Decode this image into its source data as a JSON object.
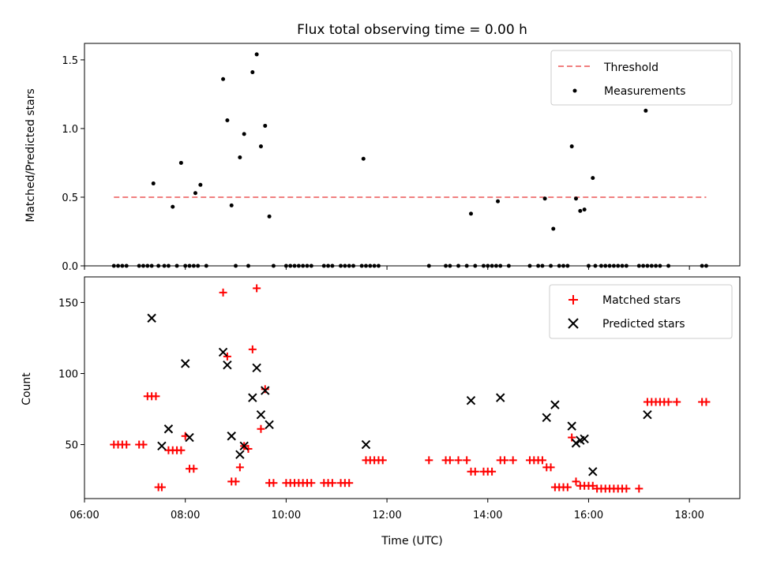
{
  "chart_data": [
    {
      "type": "scatter",
      "title": "Flux total observing time = 0.00 h",
      "ylabel": "Matched/Predicted stars",
      "xlim": [
        "06:00",
        "19:00"
      ],
      "ylim": [
        0,
        1.62
      ],
      "yticks": [
        "0.0",
        "0.5",
        "1.0",
        "1.5"
      ],
      "legend_position": "top-right",
      "threshold": {
        "name": "Threshold",
        "value": 0.5,
        "color": "#f08080",
        "style": "dashed",
        "x_range": [
          "06:35",
          "18:20"
        ]
      },
      "series": [
        {
          "name": "Measurements",
          "color": "#000000",
          "marker": "dot",
          "points": [
            [
              "06:35",
              0
            ],
            [
              "06:40",
              0
            ],
            [
              "06:45",
              0
            ],
            [
              "06:50",
              0
            ],
            [
              "07:05",
              0
            ],
            [
              "07:10",
              0
            ],
            [
              "07:15",
              0
            ],
            [
              "07:20",
              0
            ],
            [
              "07:22",
              0.6
            ],
            [
              "07:28",
              0
            ],
            [
              "07:35",
              0
            ],
            [
              "07:40",
              0
            ],
            [
              "07:45",
              0.43
            ],
            [
              "07:50",
              0
            ],
            [
              "07:55",
              0.75
            ],
            [
              "08:00",
              0
            ],
            [
              "08:05",
              0
            ],
            [
              "08:10",
              0
            ],
            [
              "08:12",
              0.53
            ],
            [
              "08:15",
              0
            ],
            [
              "08:18",
              0.59
            ],
            [
              "08:25",
              0
            ],
            [
              "08:45",
              1.36
            ],
            [
              "08:50",
              1.06
            ],
            [
              "08:55",
              0.44
            ],
            [
              "09:00",
              0
            ],
            [
              "09:05",
              0.79
            ],
            [
              "09:10",
              0.96
            ],
            [
              "09:15",
              0
            ],
            [
              "09:20",
              1.41
            ],
            [
              "09:25",
              1.54
            ],
            [
              "09:30",
              0.87
            ],
            [
              "09:35",
              1.02
            ],
            [
              "09:40",
              0.36
            ],
            [
              "09:45",
              0
            ],
            [
              "10:00",
              0
            ],
            [
              "10:05",
              0
            ],
            [
              "10:10",
              0
            ],
            [
              "10:15",
              0
            ],
            [
              "10:20",
              0
            ],
            [
              "10:25",
              0
            ],
            [
              "10:30",
              0
            ],
            [
              "10:45",
              0
            ],
            [
              "10:50",
              0
            ],
            [
              "10:55",
              0
            ],
            [
              "11:05",
              0
            ],
            [
              "11:10",
              0
            ],
            [
              "11:15",
              0
            ],
            [
              "11:20",
              0
            ],
            [
              "11:30",
              0
            ],
            [
              "11:32",
              0.78
            ],
            [
              "11:35",
              0
            ],
            [
              "11:40",
              0
            ],
            [
              "11:45",
              0
            ],
            [
              "11:50",
              0
            ],
            [
              "12:50",
              0
            ],
            [
              "13:10",
              0
            ],
            [
              "13:15",
              0
            ],
            [
              "13:25",
              0
            ],
            [
              "13:35",
              0
            ],
            [
              "13:40",
              0.38
            ],
            [
              "13:45",
              0
            ],
            [
              "13:55",
              0
            ],
            [
              "14:00",
              0
            ],
            [
              "14:05",
              0
            ],
            [
              "14:10",
              0
            ],
            [
              "14:12",
              0.47
            ],
            [
              "14:15",
              0
            ],
            [
              "14:25",
              0
            ],
            [
              "14:50",
              0
            ],
            [
              "15:00",
              0
            ],
            [
              "15:05",
              0
            ],
            [
              "15:08",
              0.49
            ],
            [
              "15:15",
              0
            ],
            [
              "15:18",
              0.27
            ],
            [
              "15:25",
              0
            ],
            [
              "15:30",
              0
            ],
            [
              "15:35",
              0
            ],
            [
              "15:40",
              0.87
            ],
            [
              "15:45",
              0.49
            ],
            [
              "15:50",
              0.4
            ],
            [
              "15:55",
              0.41
            ],
            [
              "16:00",
              0
            ],
            [
              "16:05",
              0.64
            ],
            [
              "16:08",
              0
            ],
            [
              "16:15",
              0
            ],
            [
              "16:20",
              0
            ],
            [
              "16:25",
              0
            ],
            [
              "16:30",
              0
            ],
            [
              "16:35",
              0
            ],
            [
              "16:40",
              0
            ],
            [
              "16:45",
              0
            ],
            [
              "17:00",
              0
            ],
            [
              "17:05",
              0
            ],
            [
              "17:08",
              1.13
            ],
            [
              "17:10",
              0
            ],
            [
              "17:15",
              0
            ],
            [
              "17:20",
              0
            ],
            [
              "17:25",
              0
            ],
            [
              "17:35",
              0
            ],
            [
              "18:15",
              0
            ],
            [
              "18:20",
              0
            ]
          ]
        }
      ]
    },
    {
      "type": "scatter",
      "xlabel": "Time (UTC)",
      "ylabel": "Count",
      "xlim": [
        "06:00",
        "19:00"
      ],
      "ylim": [
        12,
        168
      ],
      "xticks": [
        "06:00",
        "08:00",
        "10:00",
        "12:00",
        "14:00",
        "16:00",
        "18:00"
      ],
      "yticks": [
        "50",
        "100",
        "150"
      ],
      "legend_position": "top-right",
      "series": [
        {
          "name": "Matched stars",
          "color": "#ff0000",
          "marker": "plus",
          "points": [
            [
              "06:35",
              50
            ],
            [
              "06:40",
              50
            ],
            [
              "06:45",
              50
            ],
            [
              "06:50",
              50
            ],
            [
              "07:05",
              50
            ],
            [
              "07:10",
              50
            ],
            [
              "07:15",
              84
            ],
            [
              "07:20",
              84
            ],
            [
              "07:25",
              84
            ],
            [
              "07:28",
              20
            ],
            [
              "07:32",
              20
            ],
            [
              "07:40",
              46
            ],
            [
              "07:45",
              46
            ],
            [
              "07:50",
              46
            ],
            [
              "07:55",
              46
            ],
            [
              "08:00",
              56
            ],
            [
              "08:05",
              33
            ],
            [
              "08:10",
              33
            ],
            [
              "08:45",
              157
            ],
            [
              "08:50",
              112
            ],
            [
              "08:55",
              24
            ],
            [
              "09:00",
              24
            ],
            [
              "09:05",
              34
            ],
            [
              "09:10",
              49
            ],
            [
              "09:15",
              47
            ],
            [
              "09:20",
              117
            ],
            [
              "09:25",
              160
            ],
            [
              "09:30",
              61
            ],
            [
              "09:35",
              89
            ],
            [
              "09:40",
              23
            ],
            [
              "09:45",
              23
            ],
            [
              "10:00",
              23
            ],
            [
              "10:05",
              23
            ],
            [
              "10:10",
              23
            ],
            [
              "10:15",
              23
            ],
            [
              "10:20",
              23
            ],
            [
              "10:25",
              23
            ],
            [
              "10:30",
              23
            ],
            [
              "10:45",
              23
            ],
            [
              "10:50",
              23
            ],
            [
              "10:55",
              23
            ],
            [
              "11:05",
              23
            ],
            [
              "11:10",
              23
            ],
            [
              "11:15",
              23
            ],
            [
              "11:35",
              39
            ],
            [
              "11:40",
              39
            ],
            [
              "11:45",
              39
            ],
            [
              "11:50",
              39
            ],
            [
              "11:55",
              39
            ],
            [
              "12:50",
              39
            ],
            [
              "13:10",
              39
            ],
            [
              "13:15",
              39
            ],
            [
              "13:25",
              39
            ],
            [
              "13:35",
              39
            ],
            [
              "13:40",
              31
            ],
            [
              "13:45",
              31
            ],
            [
              "13:55",
              31
            ],
            [
              "14:00",
              31
            ],
            [
              "14:05",
              31
            ],
            [
              "14:15",
              39
            ],
            [
              "14:20",
              39
            ],
            [
              "14:30",
              39
            ],
            [
              "14:50",
              39
            ],
            [
              "14:55",
              39
            ],
            [
              "15:00",
              39
            ],
            [
              "15:05",
              39
            ],
            [
              "15:10",
              34
            ],
            [
              "15:15",
              34
            ],
            [
              "15:20",
              20
            ],
            [
              "15:25",
              20
            ],
            [
              "15:30",
              20
            ],
            [
              "15:35",
              20
            ],
            [
              "15:40",
              55
            ],
            [
              "15:45",
              24
            ],
            [
              "15:50",
              21
            ],
            [
              "15:55",
              21
            ],
            [
              "16:00",
              21
            ],
            [
              "16:05",
              21
            ],
            [
              "16:10",
              19
            ],
            [
              "16:15",
              19
            ],
            [
              "16:20",
              19
            ],
            [
              "16:25",
              19
            ],
            [
              "16:30",
              19
            ],
            [
              "16:35",
              19
            ],
            [
              "16:40",
              19
            ],
            [
              "16:45",
              19
            ],
            [
              "17:00",
              19
            ],
            [
              "17:10",
              80
            ],
            [
              "17:15",
              80
            ],
            [
              "17:20",
              80
            ],
            [
              "17:25",
              80
            ],
            [
              "17:30",
              80
            ],
            [
              "17:35",
              80
            ],
            [
              "17:45",
              80
            ],
            [
              "18:15",
              80
            ],
            [
              "18:20",
              80
            ]
          ]
        },
        {
          "name": "Predicted stars",
          "color": "#000000",
          "marker": "x",
          "points": [
            [
              "07:20",
              139
            ],
            [
              "07:32",
              49
            ],
            [
              "07:40",
              61
            ],
            [
              "08:00",
              107
            ],
            [
              "08:05",
              55
            ],
            [
              "08:45",
              115
            ],
            [
              "08:50",
              106
            ],
            [
              "08:55",
              56
            ],
            [
              "09:05",
              43
            ],
            [
              "09:10",
              49
            ],
            [
              "09:20",
              83
            ],
            [
              "09:25",
              104
            ],
            [
              "09:30",
              71
            ],
            [
              "09:35",
              88
            ],
            [
              "09:40",
              64
            ],
            [
              "11:35",
              50
            ],
            [
              "13:40",
              81
            ],
            [
              "14:15",
              83
            ],
            [
              "15:10",
              69
            ],
            [
              "15:20",
              78
            ],
            [
              "15:40",
              63
            ],
            [
              "15:45",
              51
            ],
            [
              "15:50",
              53
            ],
            [
              "15:55",
              54
            ],
            [
              "16:05",
              31
            ],
            [
              "17:10",
              71
            ]
          ]
        }
      ]
    }
  ]
}
